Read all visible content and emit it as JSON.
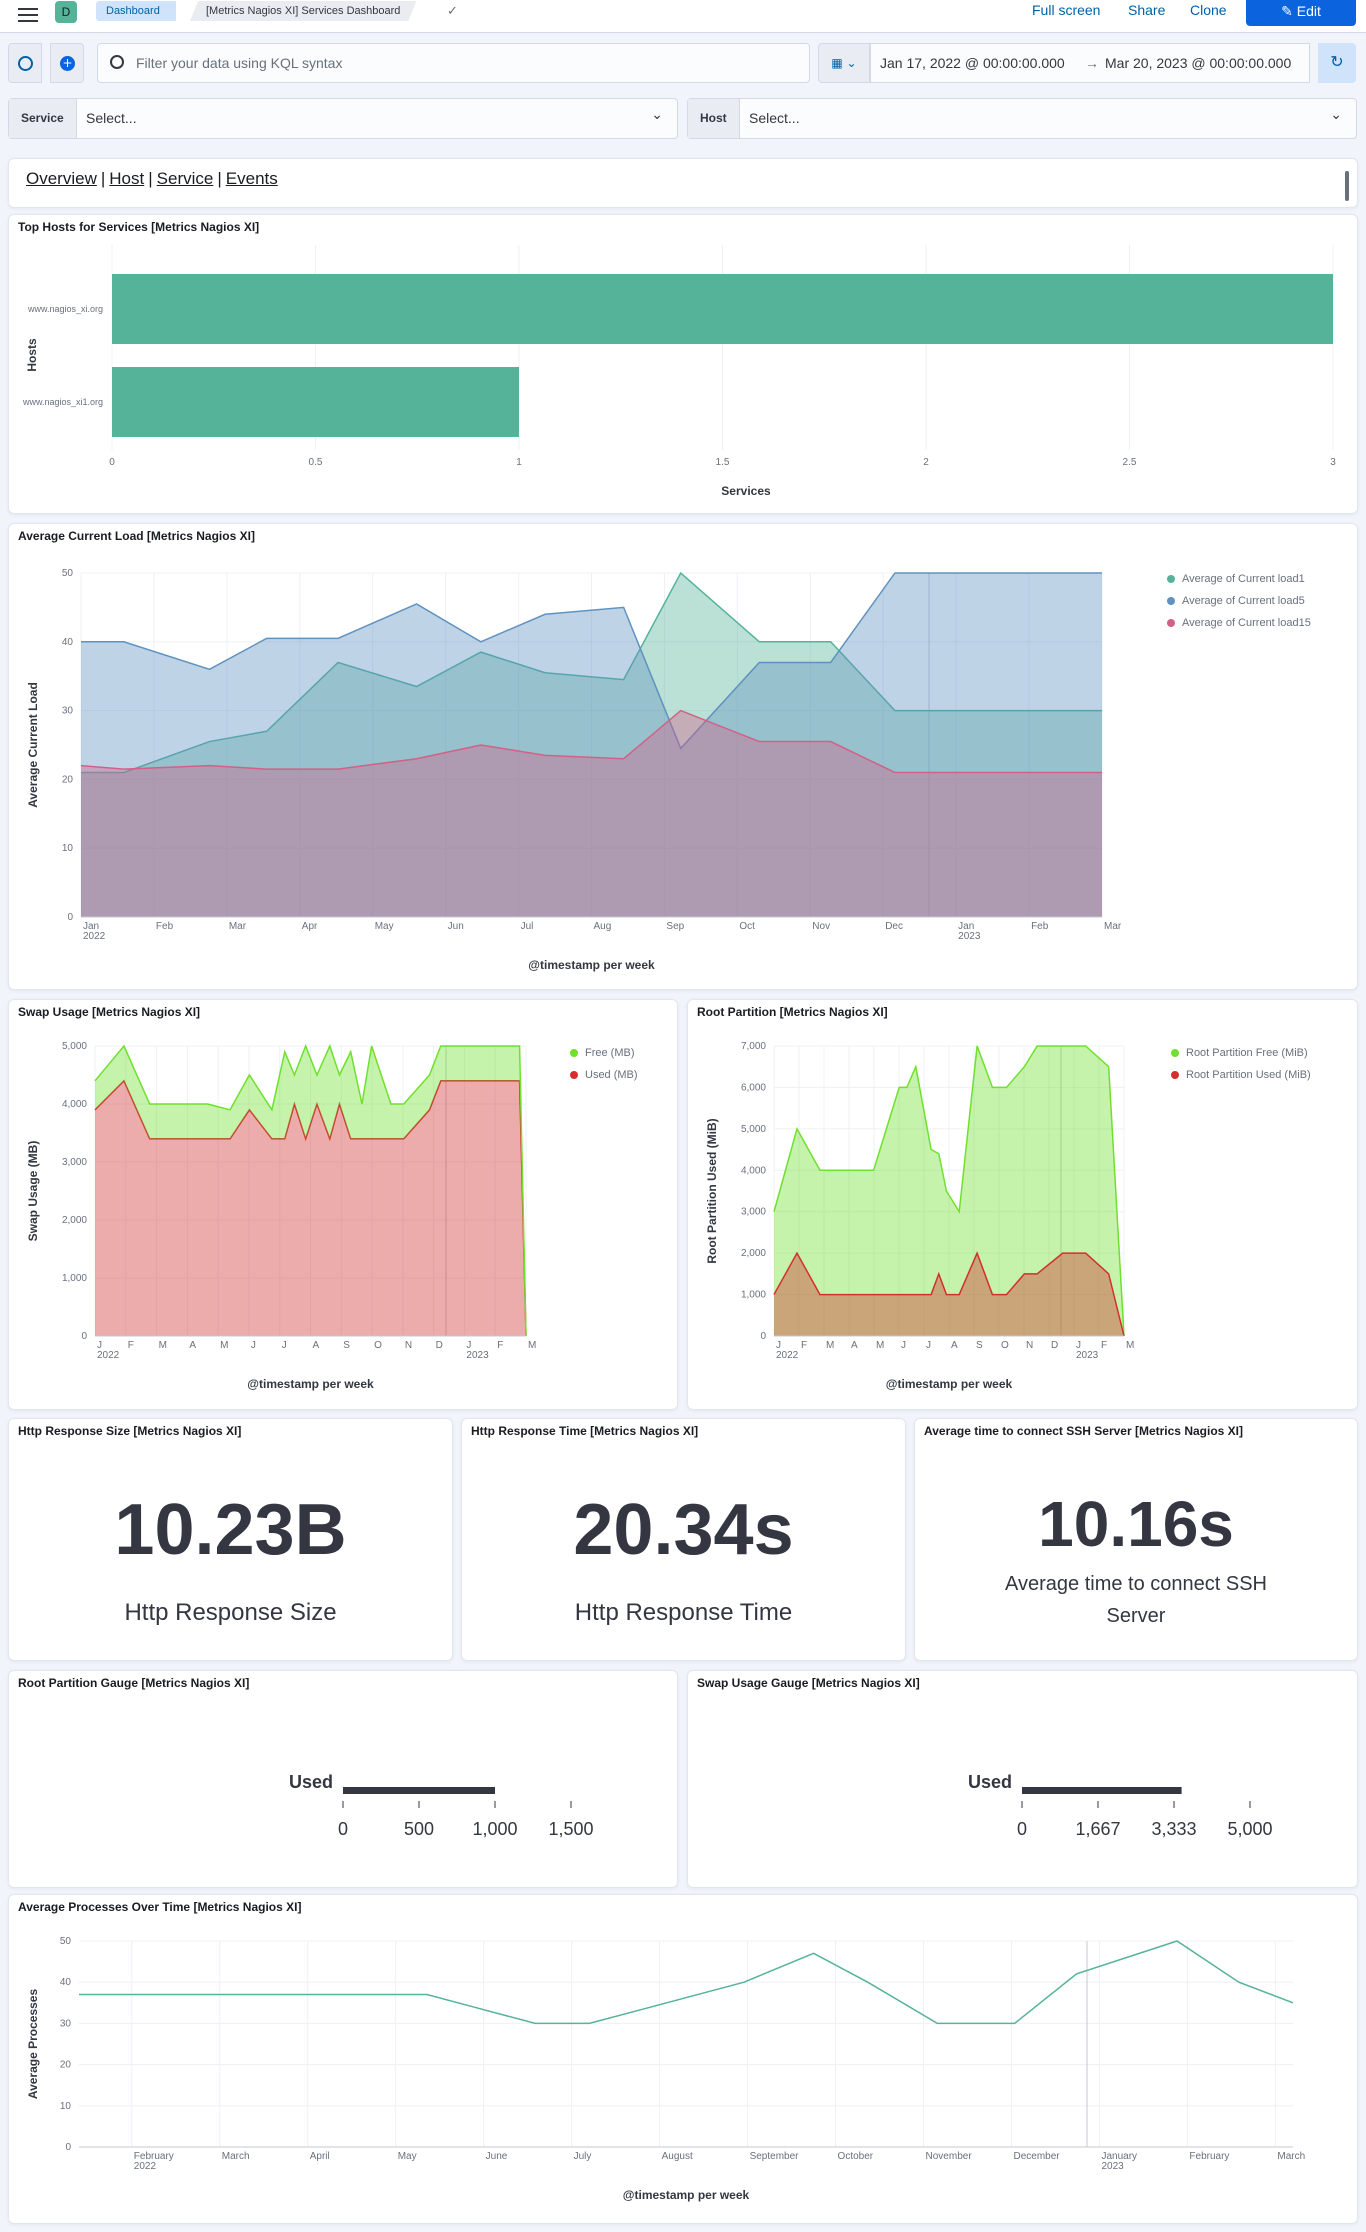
{
  "header": {
    "app_letter": "D",
    "breadcrumbs": [
      "Dashboard",
      "[Metrics Nagios XI] Services Dashboard"
    ],
    "actions": [
      "Full screen",
      "Share",
      "Clone"
    ],
    "edit_label": "Edit"
  },
  "query": {
    "placeholder": "Filter your data using KQL syntax",
    "date_start": "Jan 17, 2022 @ 00:00:00.000",
    "date_arrow": "→",
    "date_end": "Mar 20, 2023 @ 00:00:00.000"
  },
  "controls": [
    {
      "label": "Service",
      "value": "Select..."
    },
    {
      "label": "Host",
      "value": "Select..."
    }
  ],
  "nav": {
    "links": [
      "Overview",
      "Host",
      "Service",
      "Events"
    ],
    "separator": "|"
  },
  "panels": {
    "top_hosts": {
      "title": "Top Hosts for Services [Metrics Nagios XI]",
      "chart_data": {
        "type": "bar",
        "orientation": "horizontal",
        "categories": [
          "www.nagios_xi.org",
          "www.nagios_xi1.org"
        ],
        "values": [
          3,
          1
        ],
        "xlabel": "Services",
        "ylabel": "Hosts",
        "xlim": [
          0,
          3
        ],
        "xticks": [
          "0",
          "0.5",
          "1",
          "1.5",
          "2",
          "2.5",
          "3"
        ],
        "color": "#54b399"
      }
    },
    "current_load": {
      "title": "Average Current Load [Metrics Nagios XI]",
      "chart_data": {
        "type": "area",
        "xlabel": "@timestamp per week",
        "ylabel": "Average Current Load",
        "ylim": [
          0,
          50
        ],
        "yticks": [
          "0",
          "10",
          "20",
          "30",
          "40",
          "50"
        ],
        "xticks": [
          "Jan",
          "Feb",
          "Mar",
          "Apr",
          "May",
          "Jun",
          "Jul",
          "Aug",
          "Sep",
          "Oct",
          "Nov",
          "Dec",
          "Jan",
          "Feb",
          "Mar"
        ],
        "year_labels": [
          "2022",
          "2023"
        ],
        "x": [
          0,
          0.6,
          1.8,
          2.6,
          3.6,
          4.7,
          5.6,
          6.5,
          7.6,
          8.4,
          9.5,
          10.5,
          11.4,
          12.4,
          14.3
        ],
        "series": [
          {
            "name": "Average of Current load1",
            "color": "#54b399",
            "values": [
              21,
              21,
              25.5,
              27,
              37,
              33.5,
              38.5,
              35.5,
              34.5,
              50,
              40,
              40,
              30,
              30,
              30
            ]
          },
          {
            "name": "Average of Current load5",
            "color": "#6092c0",
            "values": [
              40,
              40,
              36,
              40.5,
              40.5,
              45.5,
              40,
              44,
              45,
              24.5,
              37,
              37,
              50,
              50,
              50
            ]
          },
          {
            "name": "Average of Current load15",
            "color": "#d36086",
            "values": [
              22,
              21.5,
              22,
              21.5,
              21.5,
              23,
              25,
              23.5,
              23,
              30,
              25.5,
              25.5,
              21,
              21,
              21
            ]
          }
        ],
        "legend_position": "top-right"
      }
    },
    "swap_usage": {
      "title": "Swap Usage [Metrics Nagios XI]",
      "chart_data": {
        "type": "area",
        "stacked": true,
        "xlabel": "@timestamp per week",
        "ylabel": "Swap Usage (MB)",
        "ylim": [
          0,
          5000
        ],
        "yticks": [
          "0",
          "1,000",
          "2,000",
          "3,000",
          "4,000",
          "5,000"
        ],
        "xticks": [
          "J",
          "F",
          "M",
          "A",
          "M",
          "J",
          "J",
          "A",
          "S",
          "O",
          "N",
          "D",
          "J",
          "F",
          "M"
        ],
        "year_labels": [
          "2022",
          "2023"
        ],
        "x": [
          0,
          0.9,
          1.7,
          3.5,
          4.2,
          4.8,
          5.5,
          5.9,
          6.2,
          6.55,
          6.9,
          7.3,
          7.6,
          7.95,
          8.3,
          8.6,
          9.2,
          9.6,
          10.4,
          10.75,
          11.6,
          12.5,
          13.2,
          13.4
        ],
        "series": [
          {
            "name": "Free (MB)",
            "color": "#6fe02c",
            "values": [
              500,
              600,
              600,
              600,
              500,
              600,
              500,
              1500,
              500,
              1600,
              500,
              1600,
              500,
              1500,
              600,
              1600,
              600,
              600,
              600,
              600,
              600,
              600,
              600,
              0
            ]
          },
          {
            "name": "Used (MB)",
            "color": "#d32f2f",
            "values": [
              3900,
              4400,
              3400,
              3400,
              3400,
              3900,
              3400,
              3400,
              4000,
              3400,
              4000,
              3400,
              4000,
              3400,
              3400,
              3400,
              3400,
              3400,
              3900,
              4400,
              4400,
              4400,
              4400,
              0
            ]
          }
        ],
        "legend_position": "top-right"
      }
    },
    "root_partition": {
      "title": "Root Partition [Metrics Nagios XI]",
      "chart_data": {
        "type": "area",
        "xlabel": "@timestamp per week",
        "ylabel": "Root Partition Used (MiB)",
        "ylim": [
          0,
          7000
        ],
        "yticks": [
          "0",
          "1,000",
          "2,000",
          "3,000",
          "4,000",
          "5,000",
          "6,000",
          "7,000"
        ],
        "xticks": [
          "J",
          "F",
          "M",
          "A",
          "M",
          "J",
          "J",
          "A",
          "S",
          "O",
          "N",
          "D",
          "J",
          "F",
          "M"
        ],
        "year_labels": [
          "2022",
          "2023"
        ],
        "x": [
          0,
          0.9,
          1.8,
          3.9,
          4.9,
          5.2,
          5.55,
          6.15,
          6.45,
          6.75,
          7.25,
          7.95,
          8.55,
          9.1,
          9.8,
          10.3,
          11.3,
          12.2,
          13.1,
          13.7
        ],
        "series": [
          {
            "name": "Root Partition Free (MiB)",
            "color": "#6fe02c",
            "values": [
              3000,
              5000,
              4000,
              4000,
              6000,
              6000,
              6500,
              4500,
              4400,
              3500,
              3000,
              7000,
              6000,
              6000,
              6500,
              7000,
              7000,
              7000,
              6500,
              0
            ]
          },
          {
            "name": "Root Partition Used (MiB)",
            "color": "#d32f2f",
            "values": [
              1000,
              2000,
              1000,
              1000,
              1000,
              1000,
              1000,
              1000,
              1500,
              1000,
              1000,
              2000,
              1000,
              1000,
              1500,
              1500,
              2000,
              2000,
              1500,
              0
            ]
          }
        ],
        "legend_position": "top-right"
      }
    },
    "http_size": {
      "title": "Http Response Size [Metrics Nagios XI]",
      "value": "10.23B",
      "label": "Http Response Size"
    },
    "http_time": {
      "title": "Http Response Time [Metrics Nagios XI]",
      "value": "20.34s",
      "label": "Http Response Time"
    },
    "ssh_time": {
      "title": "Average time to connect SSH Server [Metrics Nagios XI]",
      "value": "10.16s",
      "label_line1": "Average time to connect SSH",
      "label_line2": "Server"
    },
    "root_gauge": {
      "title": "Root Partition Gauge [Metrics Nagios XI]",
      "label": "Used",
      "value": 1000,
      "range": [
        0,
        1500
      ],
      "ticks": [
        "0",
        "500",
        "1,000",
        "1,500"
      ]
    },
    "swap_gauge": {
      "title": "Swap Usage Gauge [Metrics Nagios XI]",
      "label": "Used",
      "value": 3500,
      "range": [
        0,
        5000
      ],
      "ticks": [
        "0",
        "1,667",
        "3,333",
        "5,000"
      ]
    },
    "processes": {
      "title": "Average Processes Over Time [Metrics Nagios XI]",
      "chart_data": {
        "type": "line",
        "xlabel": "@timestamp per week",
        "ylabel": "Average Processes",
        "ylim": [
          0,
          50
        ],
        "yticks": [
          "0",
          "10",
          "20",
          "30",
          "40",
          "50"
        ],
        "xticks": [
          "February",
          "March",
          "April",
          "May",
          "June",
          "July",
          "August",
          "September",
          "October",
          "November",
          "December",
          "January",
          "February",
          "March"
        ],
        "year_labels": [
          "2022",
          "2023"
        ],
        "x": [
          0,
          2.8,
          4.5,
          5.1,
          5.9,
          6.6,
          7.6,
          8.6,
          9.5,
          10.2,
          11.1,
          12.1,
          12.9,
          14.2,
          15.0,
          15.7
        ],
        "series": [
          {
            "name": "",
            "color": "#54b399",
            "values": [
              37,
              37,
              37,
              34,
              30,
              30,
              35,
              40,
              47,
              40,
              30,
              30,
              42,
              50,
              40,
              35
            ]
          }
        ]
      }
    }
  }
}
